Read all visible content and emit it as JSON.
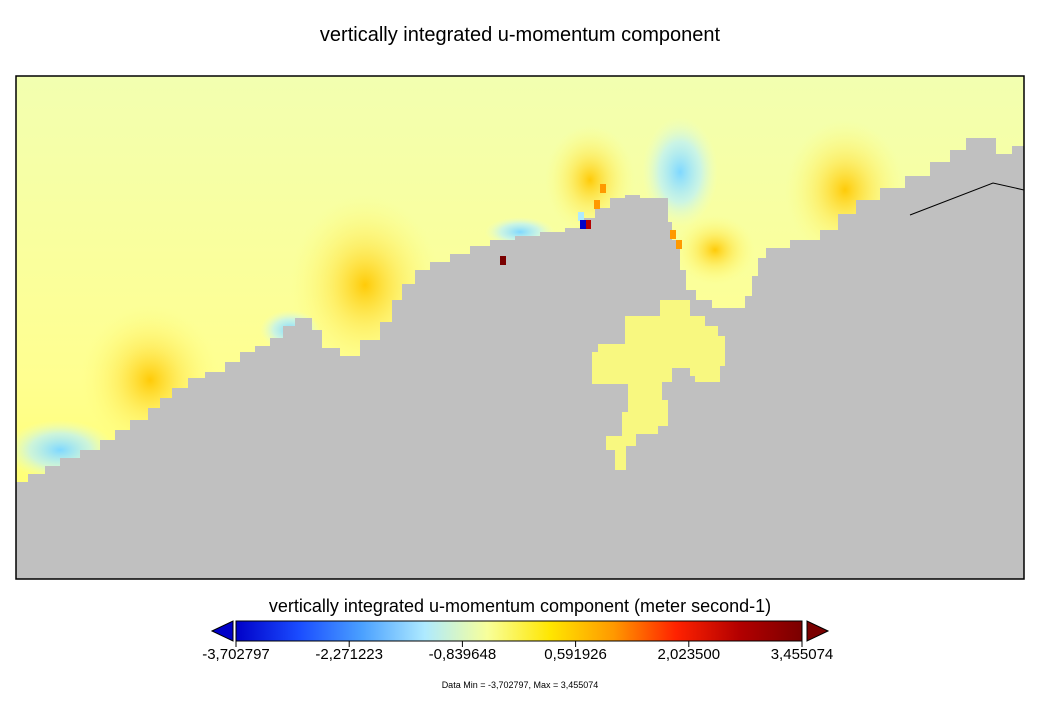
{
  "chart_data": {
    "type": "heatmap",
    "title": "vertically integrated u-momentum component",
    "colorbar": {
      "label": "vertically integrated u-momentum component (meter second-1)",
      "min": -3.702797,
      "max": 3.455074,
      "ticks": [
        "-3,702797",
        "-2,271223",
        "-0,839648",
        "0,591926",
        "2,023500",
        "3,455074"
      ],
      "extend": "both",
      "colors": [
        "#0000c8",
        "#1a4cff",
        "#4aa0ff",
        "#aeeaff",
        "#f8ff9a",
        "#ffe600",
        "#ff9900",
        "#ff2200",
        "#b30000",
        "#7a0000"
      ]
    },
    "data_range_text": "Data Min = -3,702797, Max = 3,455074",
    "land_color": "#c0c0c0",
    "ocean_base_color": "#ffff80",
    "hotspots": [
      {
        "value": 1.2
      },
      {
        "value": 1.0
      },
      {
        "value": -1.1
      },
      {
        "value": 2.4
      },
      {
        "value": 0.9
      },
      {
        "value": 1.3
      },
      {
        "value": 3.4
      },
      {
        "value": -3.7
      }
    ]
  }
}
